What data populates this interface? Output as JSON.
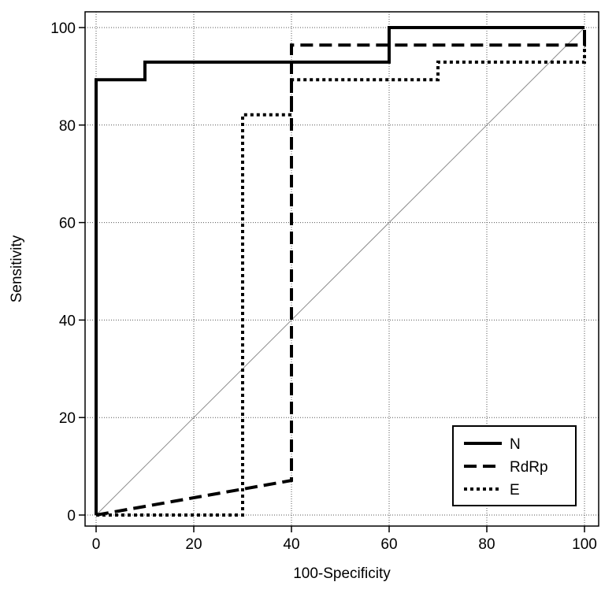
{
  "chart_data": {
    "type": "line",
    "title": "",
    "xlabel": "100-Specificity",
    "ylabel": "Sensitivity",
    "xlim": [
      0,
      100
    ],
    "ylim": [
      0,
      100
    ],
    "xticks": [
      0,
      20,
      40,
      60,
      80,
      100
    ],
    "yticks": [
      0,
      20,
      40,
      60,
      80,
      100
    ],
    "grid": true,
    "legend_position": "bottom-right",
    "diagonal_reference": [
      [
        0,
        0
      ],
      [
        100,
        100
      ]
    ],
    "series": [
      {
        "name": "N",
        "style": "solid",
        "points": [
          [
            0,
            0
          ],
          [
            0,
            89.3
          ],
          [
            10,
            89.3
          ],
          [
            10,
            92.9
          ],
          [
            60,
            92.9
          ],
          [
            60,
            100
          ],
          [
            100,
            100
          ]
        ]
      },
      {
        "name": "RdRp",
        "style": "dashed",
        "points": [
          [
            0,
            0
          ],
          [
            40,
            7.1
          ],
          [
            40,
            96.4
          ],
          [
            100,
            96.4
          ],
          [
            100,
            100
          ]
        ]
      },
      {
        "name": "E",
        "style": "dotted",
        "points": [
          [
            0,
            0
          ],
          [
            30,
            0
          ],
          [
            30,
            82.1
          ],
          [
            40,
            82.1
          ],
          [
            40,
            89.3
          ],
          [
            70,
            89.3
          ],
          [
            70,
            92.9
          ],
          [
            100,
            92.9
          ],
          [
            100,
            100
          ]
        ]
      }
    ]
  }
}
